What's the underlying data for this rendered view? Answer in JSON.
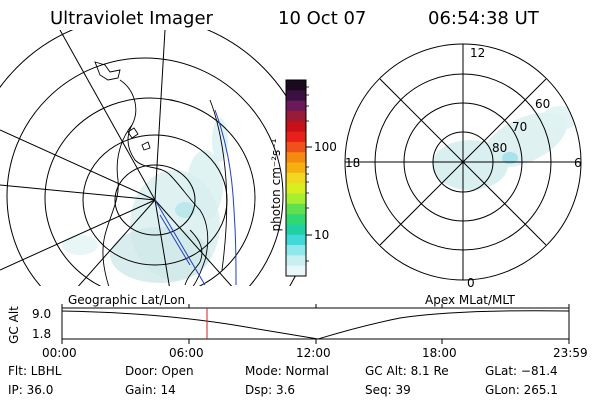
{
  "header": {
    "instrument": "Ultraviolet Imager",
    "date": "10 Oct 07",
    "time": "06:54:38 UT"
  },
  "left_map": {
    "caption": "Geographic Lat/Lon"
  },
  "right_map": {
    "caption": "Apex MLat/MLT",
    "mlt_labels": [
      "12",
      "18",
      "6",
      "0"
    ],
    "mlat_labels": [
      "60",
      "70",
      "80"
    ]
  },
  "colorbar": {
    "unit_label": "photon cm⁻²s⁻¹",
    "ticks": [
      "100",
      "10"
    ],
    "colors": [
      "#1a0a1e",
      "#3a1040",
      "#6a1a5a",
      "#9a1a3a",
      "#c81018",
      "#e8201a",
      "#f0501a",
      "#f58a10",
      "#f5b010",
      "#f0d820",
      "#d8ee20",
      "#a8ee30",
      "#60e050",
      "#30d870",
      "#20d0a0",
      "#40d8d8",
      "#90e8ec",
      "#c8f0f2",
      "#e8f8f8"
    ]
  },
  "altitude_plot": {
    "ylabel": "GC Alt",
    "yticks": [
      "9.0",
      "1.8"
    ],
    "xticks": [
      "00:00",
      "06:00",
      "12:00",
      "18:00",
      "23:59"
    ]
  },
  "info": {
    "flt": "Flt: LBHL",
    "ip": "IP: 36.0",
    "door": "Door: Open",
    "gain": "Gain: 14",
    "mode": "Mode: Normal",
    "dsp": "Dsp:    3.6",
    "gcalt": "GC Alt: 8.1 Re",
    "seq": "Seq: 39",
    "glat": "GLat: −81.4",
    "glon": "GLon: 265.1"
  }
}
